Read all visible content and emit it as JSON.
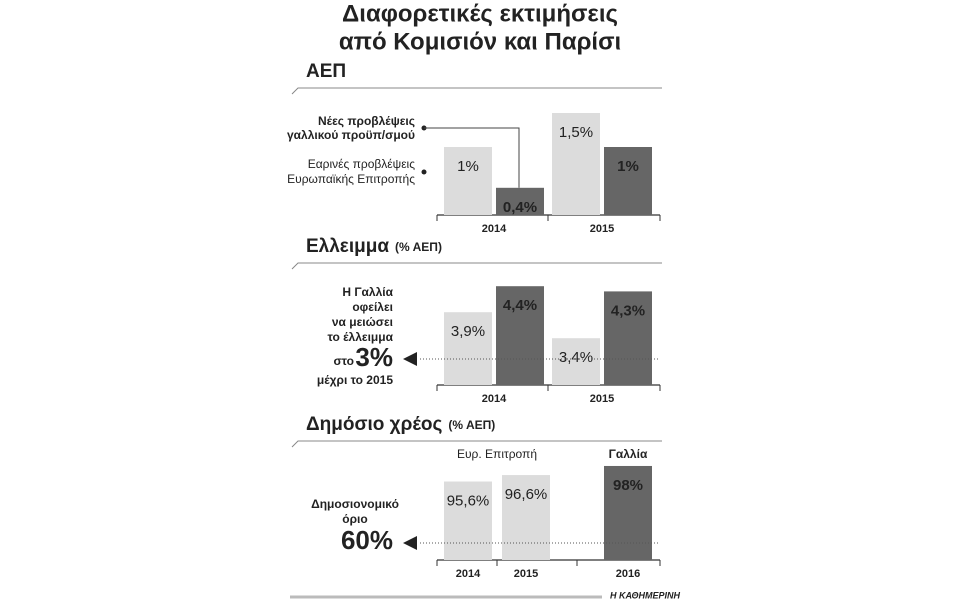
{
  "title": [
    "Διαφορετικές εκτιμήσεις",
    "από Κομισιόν και Παρίσι"
  ],
  "source": "Η ΚΑΘΗΜΕΡΙΝΗ",
  "chart_data": [
    {
      "type": "bar",
      "title": "ΑΕΠ",
      "categories": [
        "2014",
        "2015"
      ],
      "ylim": [
        0,
        1.5
      ],
      "series": [
        {
          "name": [
            "Εαρινές προβλέψεις",
            "Ευρωπαϊκής Επιτροπής"
          ],
          "color": "#dcdcdc",
          "values": [
            1,
            1.5
          ],
          "value_labels": [
            "1%",
            "1,5%"
          ]
        },
        {
          "name": [
            "Νέες προβλέψεις",
            "γαλλικού προϋπ/σμού"
          ],
          "color": "#666666",
          "values": [
            0.4,
            1
          ],
          "value_labels": [
            "0,4%",
            "1%"
          ]
        }
      ]
    },
    {
      "type": "bar",
      "title": "Ελλειμμα",
      "subtitle": "(% ΑΕΠ)",
      "categories": [
        "2014",
        "2015"
      ],
      "ylim": [
        2.5,
        4.5
      ],
      "series": [
        {
          "color": "#dcdcdc",
          "values": [
            3.9,
            3.4
          ],
          "value_labels": [
            "3,9%",
            "3,4%"
          ]
        },
        {
          "color": "#666666",
          "values": [
            4.4,
            4.3
          ],
          "value_labels": [
            "4,4%",
            "4,3%"
          ]
        }
      ],
      "annotation": {
        "lines": [
          "Η Γαλλία",
          "οφείλει",
          "να μειώσει",
          "το έλλειμμα"
        ],
        "before": "στο",
        "after": "μέχρι το 2015"
      },
      "reference": {
        "value": 3,
        "label": "3%"
      }
    },
    {
      "type": "bar",
      "title": "Δημόσιο χρέος",
      "subtitle": "(% ΑΕΠ)",
      "categories": [
        "2014",
        "2015",
        "2016"
      ],
      "ylim": [
        83.5,
        100
      ],
      "values": [
        95.6,
        96.6,
        98
      ],
      "value_labels": [
        "95,6%",
        "96,6%",
        "98%"
      ],
      "colors": [
        "#dcdcdc",
        "#dcdcdc",
        "#666666"
      ],
      "groups": [
        "Ευρ. Επιτροπή",
        "Γαλλία"
      ],
      "annotation": [
        "Δημοσιονομικό",
        "όριο"
      ],
      "reference_label": "60%"
    }
  ]
}
